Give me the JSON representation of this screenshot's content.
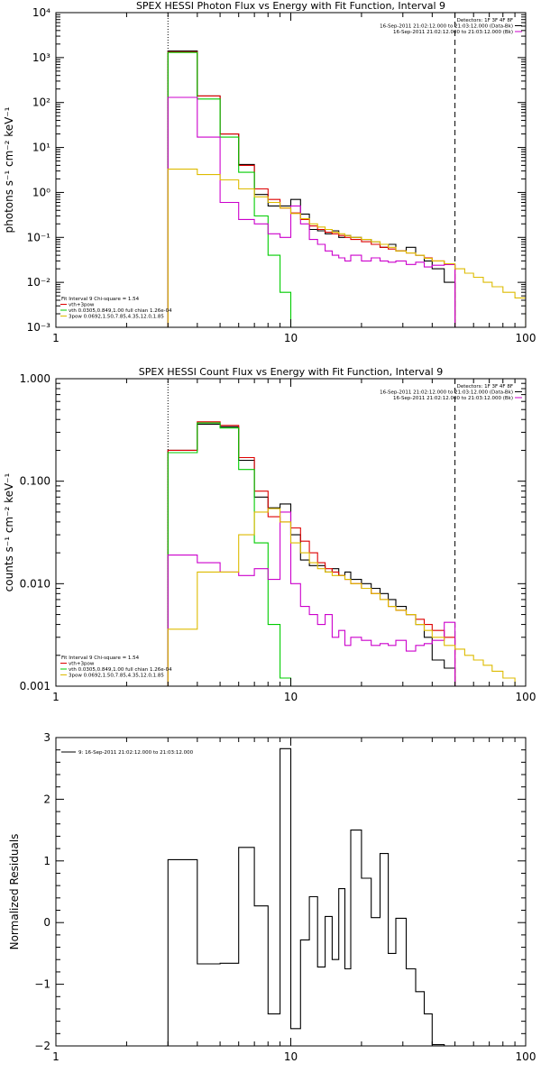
{
  "colors": {
    "data": "#000000",
    "total_fit": "#dd0000",
    "vth": "#00cc00",
    "bkg": "#cc00cc",
    "power_law": "#ddbb00",
    "lines": "#000000"
  },
  "chart_data": [
    {
      "type": "line",
      "scale": "log-log",
      "title": "SPEX HESSI Photon Flux vs Energy with Fit Function, Interval 9",
      "ylabel": "photons s⁻¹ cm⁻² keV⁻¹",
      "xlim": [
        1,
        100
      ],
      "ylim": [
        0.001,
        10000
      ],
      "x_ticks": [
        1,
        10,
        100
      ],
      "x_tick_labels": [
        "1",
        "10",
        "100"
      ],
      "y_ticks": [
        0.001,
        0.01,
        0.1,
        1,
        10,
        100,
        1000,
        10000
      ],
      "y_tick_labels": [
        "10⁻³",
        "10⁻²",
        "10⁻¹",
        "10⁰",
        "10¹",
        "10²",
        "10³",
        "10⁴"
      ],
      "vlines": [
        {
          "x": 3,
          "style": "dotted"
        },
        {
          "x": 50,
          "style": "dashed"
        }
      ],
      "legend_topright": {
        "lines": [
          "Detectors: 1F 3F 4F 8F",
          "16-Sep-2011 21:02:12.000 to 21:03:12.000 (Data-Bk)",
          "16-Sep-2011 21:02:12.000 to 21:03:12.000 (Bk)"
        ],
        "colors": [
          "#000000",
          "#cc00cc"
        ]
      },
      "legend_bottomleft": {
        "lines": [
          "Fit Interval 9    Chi-square = 1.54",
          "vth+3pow",
          "vth 0.0305,0.849,1.00   full chian 1.26e-04",
          "3pow 0.0692,1.50,7.85,4.35,12.0,1.85"
        ],
        "colors": [
          "#000000",
          "#dd0000",
          "#00cc00",
          "#ddbb00"
        ]
      },
      "series": [
        {
          "key": "data",
          "type": "step",
          "color": "#000000",
          "edges": [
            3,
            4,
            5,
            6,
            7,
            8,
            9,
            10,
            11,
            12,
            13,
            14,
            15,
            16,
            17,
            18,
            20,
            22,
            24,
            26,
            28,
            31,
            34,
            37,
            40,
            45,
            50
          ],
          "values": [
            1400,
            140,
            20,
            4.2,
            0.9,
            0.5,
            0.5,
            0.7,
            0.33,
            0.15,
            0.14,
            0.12,
            0.14,
            0.1,
            0.11,
            0.1,
            0.09,
            0.08,
            0.06,
            0.07,
            0.05,
            0.06,
            0.04,
            0.03,
            0.02,
            0.01
          ]
        },
        {
          "key": "total_fit",
          "type": "step",
          "color": "#dd0000",
          "edges": [
            3,
            4,
            5,
            6,
            7,
            8,
            9,
            10,
            11,
            12,
            13,
            14,
            15,
            16,
            17,
            18,
            20,
            22,
            24,
            26,
            28,
            31,
            34,
            37,
            40,
            45,
            50
          ],
          "values": [
            1350,
            140,
            20,
            4.0,
            1.2,
            0.7,
            0.45,
            0.35,
            0.25,
            0.18,
            0.15,
            0.13,
            0.12,
            0.11,
            0.1,
            0.09,
            0.08,
            0.07,
            0.06,
            0.055,
            0.05,
            0.045,
            0.04,
            0.035,
            0.03,
            0.025
          ]
        },
        {
          "key": "vth",
          "type": "step",
          "color": "#00cc00",
          "edges": [
            3,
            4,
            5,
            6,
            7,
            8,
            9,
            10
          ],
          "values": [
            1300,
            120,
            17,
            2.8,
            0.3,
            0.04,
            0.006
          ]
        },
        {
          "key": "bkg",
          "type": "step",
          "color": "#cc00cc",
          "edges": [
            3,
            4,
            5,
            6,
            7,
            8,
            9,
            10,
            11,
            12,
            13,
            14,
            15,
            16,
            17,
            18,
            20,
            22,
            24,
            26,
            28,
            31,
            34,
            37,
            40,
            45,
            50
          ],
          "values": [
            130,
            17,
            0.6,
            0.25,
            0.2,
            0.12,
            0.1,
            0.5,
            0.2,
            0.09,
            0.07,
            0.05,
            0.04,
            0.035,
            0.03,
            0.04,
            0.03,
            0.035,
            0.03,
            0.028,
            0.03,
            0.025,
            0.028,
            0.022,
            0.024,
            0.025
          ]
        },
        {
          "key": "power_law",
          "type": "step",
          "color": "#ddbb00",
          "edges": [
            3,
            4,
            5,
            6,
            7,
            8,
            9,
            10,
            11,
            12,
            13,
            14,
            15,
            16,
            17,
            18,
            20,
            22,
            24,
            26,
            28,
            31,
            34,
            37,
            40,
            45,
            50,
            55,
            60,
            66,
            72,
            80,
            90,
            100
          ],
          "values": [
            3.3,
            2.5,
            1.9,
            1.2,
            0.8,
            0.6,
            0.45,
            0.34,
            0.26,
            0.2,
            0.17,
            0.15,
            0.13,
            0.12,
            0.11,
            0.1,
            0.09,
            0.08,
            0.07,
            0.06,
            0.05,
            0.045,
            0.04,
            0.034,
            0.03,
            0.026,
            0.02,
            0.016,
            0.013,
            0.01,
            0.008,
            0.006,
            0.0045
          ]
        }
      ]
    },
    {
      "type": "line",
      "scale": "log-log",
      "title": "SPEX HESSI Count Flux vs Energy with Fit Function, Interval 9",
      "ylabel": "counts s⁻¹ cm⁻² keV⁻¹",
      "xlim": [
        1,
        100
      ],
      "ylim": [
        0.001,
        1
      ],
      "x_ticks": [
        1,
        10,
        100
      ],
      "x_tick_labels": [
        "1",
        "10",
        "100"
      ],
      "y_ticks": [
        0.001,
        0.01,
        0.1,
        1
      ],
      "y_tick_labels": [
        "0.001",
        "0.010",
        "0.100",
        "1.000"
      ],
      "vlines": [
        {
          "x": 3,
          "style": "dotted"
        },
        {
          "x": 50,
          "style": "dashed"
        }
      ],
      "legend_topright": {
        "lines": [
          "Detectors: 1F 3F 4F 8F",
          "16-Sep-2011 21:02:12.000 to 21:03:12.000 (Data-Bk)",
          "16-Sep-2011 21:02:12.000 to 21:03:12.000 (Bk)"
        ],
        "colors": [
          "#000000",
          "#cc00cc"
        ]
      },
      "legend_bottomleft": {
        "lines": [
          "Fit Interval 9    Chi-square = 1.54",
          "vth+3pow",
          "vth 0.0305,0.849,1.00   full chian 1.26e-04",
          "3pow 0.0692,1.50,7.85,4.35,12.0,1.85"
        ],
        "colors": [
          "#000000",
          "#dd0000",
          "#00cc00",
          "#ddbb00"
        ]
      },
      "series": [
        {
          "key": "data",
          "type": "step",
          "color": "#000000",
          "edges": [
            3,
            4,
            5,
            6,
            7,
            8,
            9,
            10,
            11,
            12,
            13,
            14,
            15,
            16,
            17,
            18,
            20,
            22,
            24,
            26,
            28,
            31,
            34,
            37,
            40,
            45,
            50
          ],
          "values": [
            0.2,
            0.36,
            0.34,
            0.16,
            0.07,
            0.055,
            0.06,
            0.03,
            0.017,
            0.015,
            0.015,
            0.013,
            0.014,
            0.012,
            0.013,
            0.011,
            0.01,
            0.009,
            0.008,
            0.007,
            0.006,
            0.005,
            0.004,
            0.003,
            0.0018,
            0.0015
          ]
        },
        {
          "key": "total_fit",
          "type": "step",
          "color": "#dd0000",
          "edges": [
            3,
            4,
            5,
            6,
            7,
            8,
            9,
            10,
            11,
            12,
            13,
            14,
            15,
            16,
            17,
            18,
            20,
            22,
            24,
            26,
            28,
            31,
            34,
            37,
            40,
            45,
            50
          ],
          "values": [
            0.2,
            0.38,
            0.35,
            0.17,
            0.08,
            0.045,
            0.04,
            0.035,
            0.026,
            0.02,
            0.016,
            0.014,
            0.013,
            0.012,
            0.011,
            0.01,
            0.009,
            0.008,
            0.007,
            0.006,
            0.0055,
            0.005,
            0.0045,
            0.004,
            0.0035,
            0.003
          ]
        },
        {
          "key": "vth",
          "type": "step",
          "color": "#00cc00",
          "edges": [
            3,
            4,
            5,
            6,
            7,
            8,
            9,
            10
          ],
          "values": [
            0.19,
            0.37,
            0.33,
            0.13,
            0.025,
            0.004,
            0.0012
          ]
        },
        {
          "key": "bkg",
          "type": "step",
          "color": "#cc00cc",
          "edges": [
            3,
            4,
            5,
            6,
            7,
            8,
            9,
            10,
            11,
            12,
            13,
            14,
            15,
            16,
            17,
            18,
            20,
            22,
            24,
            26,
            28,
            31,
            34,
            37,
            40,
            45,
            50
          ],
          "values": [
            0.019,
            0.016,
            0.013,
            0.012,
            0.014,
            0.011,
            0.05,
            0.01,
            0.006,
            0.005,
            0.004,
            0.005,
            0.003,
            0.0035,
            0.0025,
            0.003,
            0.0028,
            0.0025,
            0.0026,
            0.0025,
            0.0028,
            0.0022,
            0.0025,
            0.0026,
            0.0028,
            0.0042
          ]
        },
        {
          "key": "power_law",
          "type": "step",
          "color": "#ddbb00",
          "edges": [
            3,
            4,
            5,
            6,
            7,
            8,
            9,
            10,
            11,
            12,
            13,
            14,
            15,
            16,
            17,
            18,
            20,
            22,
            24,
            26,
            28,
            31,
            34,
            37,
            40,
            45,
            50,
            55,
            60,
            66,
            72,
            80,
            90,
            100
          ],
          "values": [
            0.0036,
            0.013,
            0.013,
            0.03,
            0.05,
            0.054,
            0.04,
            0.025,
            0.02,
            0.016,
            0.014,
            0.013,
            0.012,
            0.012,
            0.011,
            0.01,
            0.009,
            0.008,
            0.007,
            0.006,
            0.0055,
            0.005,
            0.004,
            0.0035,
            0.003,
            0.0025,
            0.0023,
            0.002,
            0.0018,
            0.0016,
            0.0014,
            0.0012,
            0.001
          ]
        }
      ]
    },
    {
      "type": "line",
      "scale": "log-x",
      "title": "",
      "ylabel": "Normalized Residuals",
      "xlim": [
        1,
        100
      ],
      "ylim": [
        -2,
        3
      ],
      "x_ticks": [
        1,
        10,
        100
      ],
      "x_tick_labels": [
        "1",
        "10",
        "100"
      ],
      "y_ticks": [
        -2,
        -1,
        0,
        1,
        2,
        3
      ],
      "y_tick_labels": [
        "−2",
        "−1",
        "0",
        "1",
        "2",
        "3"
      ],
      "vlines": [],
      "legend_topleft": {
        "lines": [
          "9: 16-Sep-2011 21:02:12.000 to 21:03:12.000"
        ],
        "colors": [
          "#000000"
        ]
      },
      "series": [
        {
          "key": "residuals",
          "type": "step",
          "color": "#000000",
          "edges": [
            3,
            4,
            5,
            6,
            7,
            8,
            9,
            10,
            11,
            12,
            13,
            14,
            15,
            16,
            17,
            18,
            20,
            22,
            24,
            26,
            28,
            31,
            34,
            37,
            40,
            45,
            50
          ],
          "values": [
            1.02,
            -0.67,
            -0.66,
            1.22,
            0.27,
            -1.48,
            2.82,
            -1.72,
            -0.28,
            0.42,
            -0.72,
            0.1,
            -0.6,
            0.55,
            -0.75,
            1.5,
            0.72,
            0.08,
            1.12,
            -0.5,
            0.07,
            -0.75,
            -1.12,
            -1.48,
            -1.98,
            -2.0
          ]
        }
      ]
    }
  ]
}
